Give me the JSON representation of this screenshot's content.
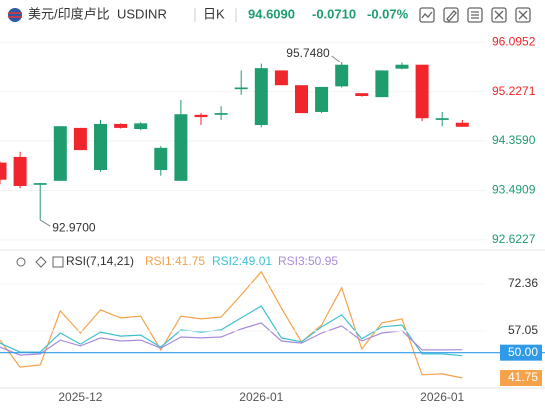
{
  "header": {
    "pair": "美元/印度卢比",
    "symbol": "USDINR",
    "period": "日K",
    "price": "94.6090",
    "change": "-0.0710",
    "change_pct": "-0.07%"
  },
  "chart_data": [
    {
      "type": "candlestick",
      "up_color": "#1f9d6f",
      "down_color": "#f0262c",
      "open": [
        93.98,
        94.08,
        93.59,
        93.66,
        94.59,
        93.85,
        94.66,
        94.57,
        93.85,
        93.66,
        94.82,
        94.82,
        95.27,
        94.64,
        95.6,
        95.34,
        94.87,
        95.32,
        95.2,
        95.13,
        95.63,
        95.7,
        94.73,
        94.68
      ],
      "high": [
        94.0,
        94.17,
        93.62,
        94.62,
        94.59,
        94.73,
        94.67,
        94.69,
        94.27,
        95.08,
        94.85,
        94.97,
        95.6,
        95.72,
        95.6,
        95.34,
        95.31,
        95.748,
        95.2,
        95.6,
        95.74,
        95.7,
        94.87,
        94.73
      ],
      "low": [
        93.6,
        93.53,
        92.97,
        93.66,
        94.2,
        93.82,
        94.58,
        94.55,
        93.75,
        93.66,
        94.64,
        94.73,
        95.17,
        94.6,
        95.34,
        94.85,
        94.85,
        95.3,
        95.14,
        95.13,
        95.62,
        94.71,
        94.62,
        94.61
      ],
      "close": [
        93.68,
        93.57,
        93.62,
        94.62,
        94.2,
        94.66,
        94.59,
        94.67,
        94.24,
        94.83,
        94.78,
        94.85,
        95.3,
        95.64,
        95.34,
        94.85,
        95.31,
        95.7,
        95.15,
        95.6,
        95.7,
        94.76,
        94.76,
        94.61
      ],
      "ylim": [
        92.48,
        96.31
      ],
      "yticks": [
        96.0952,
        95.2271,
        {
          "value": 94.359,
          "label": "94.3590"
        },
        93.4909,
        92.6227
      ],
      "annotations": [
        {
          "value": 95.748,
          "label": "95.7480"
        },
        {
          "value": 92.97,
          "label": "92.9700"
        }
      ]
    },
    {
      "type": "line",
      "title": "RSI(7,14,21)",
      "categories": [
        null,
        null,
        null,
        null,
        "2025-12",
        null,
        null,
        null,
        null,
        null,
        null,
        null,
        null,
        "2026-01",
        null,
        null,
        null,
        null,
        null,
        null,
        null,
        null,
        "2026-01",
        null
      ],
      "series": [
        {
          "name": "RSI1:41.75",
          "color": "#f5a24b",
          "values": [
            54.1,
            45.3,
            46.0,
            63.6,
            56.4,
            63.9,
            61.3,
            61.9,
            50.9,
            61.9,
            61.0,
            61.6,
            68.8,
            76.3,
            64.5,
            53.5,
            59.0,
            71.1,
            51.2,
            59.7,
            61.0,
            42.8,
            43.1,
            41.75
          ]
        },
        {
          "name": "RSI2:49.01",
          "color": "#3fc1d2",
          "values": [
            53.1,
            50.2,
            50.2,
            56.4,
            52.8,
            56.7,
            55.4,
            55.7,
            51.8,
            57.4,
            56.7,
            57.4,
            61.3,
            65.2,
            54.8,
            53.5,
            58.4,
            62.3,
            54.5,
            58.4,
            59.0,
            49.6,
            49.6,
            49.01
          ]
        },
        {
          "name": "RSI3:50.95",
          "color": "#a98bd9",
          "values": [
            51.8,
            49.2,
            49.6,
            54.1,
            52.2,
            54.8,
            53.8,
            54.1,
            51.5,
            55.1,
            54.8,
            55.1,
            57.7,
            59.7,
            53.8,
            53.1,
            56.4,
            58.7,
            53.8,
            56.4,
            57.1,
            50.9,
            50.9,
            50.95
          ]
        }
      ],
      "ylim": [
        37.2,
        76.9
      ],
      "yticks": [
        72.36,
        57.05,
        {
          "value": 50,
          "label": "50.00"
        },
        41.75
      ],
      "hline": {
        "value": 50,
        "color": "#2f9be8"
      }
    }
  ]
}
